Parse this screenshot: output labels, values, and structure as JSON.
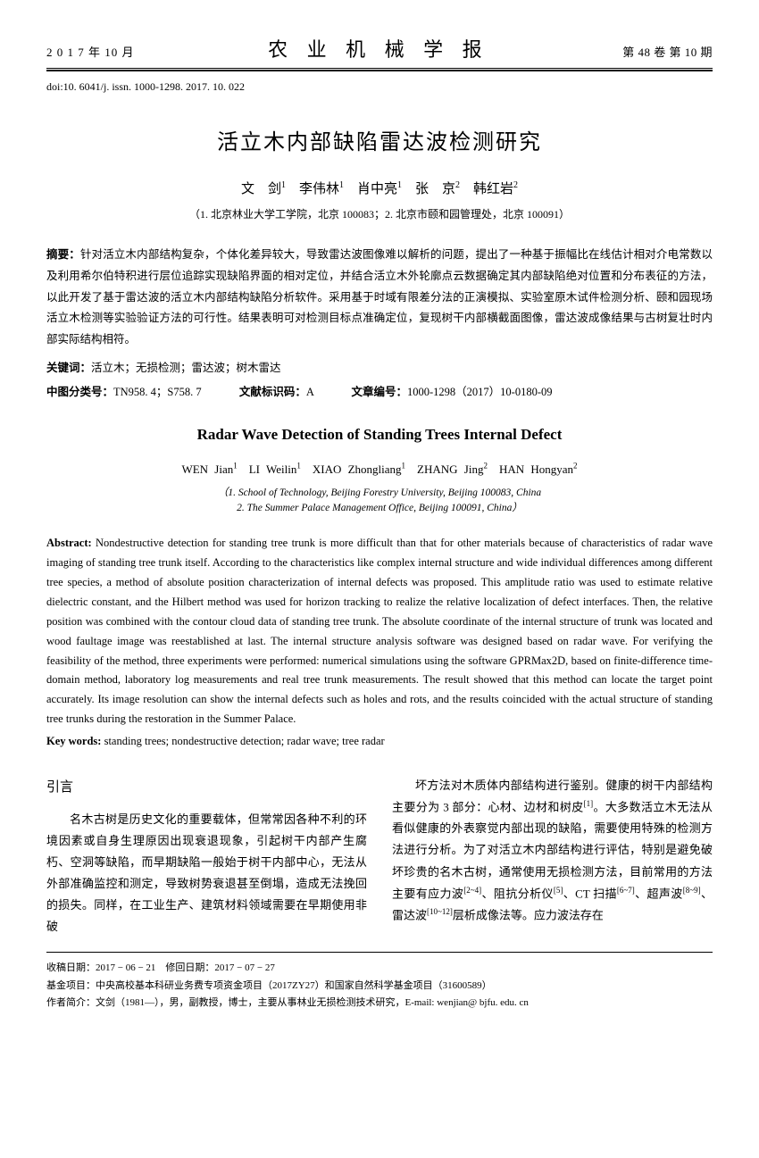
{
  "header": {
    "left": "2 0 1 7 年 10 月",
    "center": "农 业 机 械 学 报",
    "right": "第 48 卷 第 10 期"
  },
  "doi": "doi:10. 6041/j. issn. 1000-1298. 2017. 10. 022",
  "title_cn": "活立木内部缺陷雷达波检测研究",
  "authors_cn_html": "文　剑<sup>1</sup>　李伟林<sup>1</sup>　肖中亮<sup>1</sup>　张　京<sup>2</sup>　韩红岩<sup>2</sup>",
  "affil_cn": "（1. 北京林业大学工学院，北京 100083；2. 北京市颐和园管理处，北京 100091）",
  "abstract_cn_label": "摘要：",
  "abstract_cn": "针对活立木内部结构复杂，个体化差异较大，导致雷达波图像难以解析的问题，提出了一种基于振幅比在线估计相对介电常数以及利用希尔伯特积进行层位追踪实现缺陷界面的相对定位，并结合活立木外轮廓点云数据确定其内部缺陷绝对位置和分布表征的方法，以此开发了基于雷达波的活立木内部结构缺陷分析软件。采用基于时域有限差分法的正演模拟、实验室原木试件检测分析、颐和园现场活立木检测等实验验证方法的可行性。结果表明可对检测目标点准确定位，复现树干内部横截面图像，雷达波成像结果与古树复壮时内部实际结构相符。",
  "kw_cn_label": "关键词：",
  "kw_cn": "活立木；无损检测；雷达波；树木雷达",
  "classif": {
    "clc_label": "中图分类号：",
    "clc": "TN958. 4；S758. 7",
    "doc_label": "文献标识码：",
    "doc": "A",
    "art_label": "文章编号：",
    "art": "1000-1298（2017）10-0180-09"
  },
  "title_en": "Radar Wave Detection of Standing Trees Internal Defect",
  "authors_en_html": "WEN Jian<sup>1</sup>　LI Weilin<sup>1</sup>　XIAO Zhongliang<sup>1</sup>　ZHANG Jing<sup>2</sup>　HAN Hongyan<sup>2</sup>",
  "affil_en_1": "（1. School of Technology, Beijing Forestry University, Beijing 100083, China",
  "affil_en_2": "2. The Summer Palace Management Office, Beijing 100091, China）",
  "abstract_en_label": "Abstract: ",
  "abstract_en": "Nondestructive detection for standing tree trunk is more difficult than that for other materials because of characteristics of radar wave imaging of standing tree trunk itself. According to the characteristics like complex internal structure and wide individual differences among different tree species, a method of absolute position characterization of internal defects was proposed. This amplitude ratio was used to estimate relative dielectric constant, and the Hilbert method was used for horizon tracking to realize the relative localization of defect interfaces. Then, the relative position was combined with the contour cloud data of standing tree trunk. The absolute coordinate of the internal structure of trunk was located and wood faultage image was reestablished at last. The internal structure analysis software was designed based on radar wave. For verifying the feasibility of the method, three experiments were performed: numerical simulations using the software GPRMax2D, based on finite-difference time-domain method, laboratory log measurements and real tree trunk measurements. The result showed that this method can locate the target point accurately. Its image resolution can show the internal defects such as holes and rots, and the results coincided with the actual structure of standing tree trunks during the restoration in the Summer Palace.",
  "kw_en_label": "Key words: ",
  "kw_en": "standing trees; nondestructive detection; radar wave; tree radar",
  "intro_heading": "引言",
  "col_left": "名木古树是历史文化的重要载体，但常常因各种不利的环境因素或自身生理原因出现衰退现象，引起树干内部产生腐朽、空洞等缺陷，而早期缺陷一般始于树干内部中心，无法从外部准确监控和测定，导致树势衰退甚至倒塌，造成无法挽回的损失。同样，在工业生产、建筑材料领域需要在早期使用非破",
  "col_right_html": "坏方法对木质体内部结构进行鉴别。健康的树干内部结构主要分为 3 部分：心材、边材和树皮<sup>[1]</sup>。大多数活立木无法从看似健康的外表察觉内部出现的缺陷，需要使用特殊的检测方法进行分析。为了对活立木内部结构进行评估，特别是避免破坏珍贵的名木古树，通常使用无损检测方法，目前常用的方法主要有应力波<sup>[2~4]</sup>、阻抗分析仪<sup>[5]</sup>、CT 扫描<sup>[6~7]</sup>、超声波<sup>[8~9]</sup>、雷达波<sup>[10~12]</sup>层析成像法等。应力波法存在",
  "footer": {
    "dates": "收稿日期：2017 − 06 − 21　修回日期：2017 − 07 − 27",
    "fund": "基金项目：中央高校基本科研业务费专项资金项目（2017ZY27）和国家自然科学基金项目（31600589）",
    "author": "作者简介：文剑（1981—），男，副教授，博士，主要从事林业无损检测技术研究，E-mail: wenjian@ bjfu. edu. cn"
  }
}
